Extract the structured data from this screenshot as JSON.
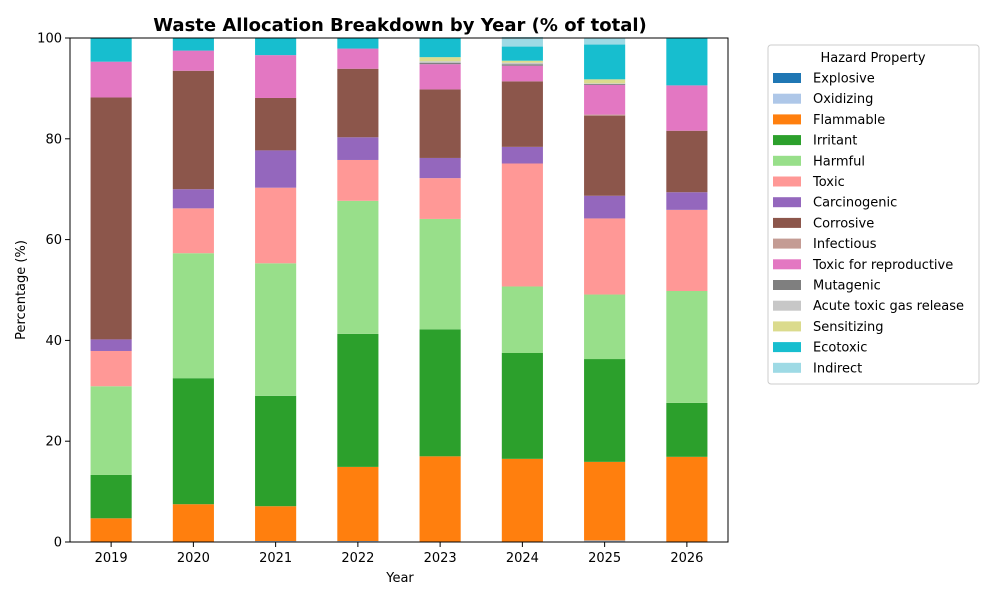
{
  "chart_data": {
    "type": "bar",
    "stacked": true,
    "title": "Waste Allocation Breakdown by Year (% of total)",
    "xlabel": "Year",
    "ylabel": "Percentage (%)",
    "ylim": [
      0,
      100
    ],
    "yticks": [
      0,
      20,
      40,
      60,
      80,
      100
    ],
    "grid": false,
    "legend": {
      "title": "Hazard Property",
      "placement": "outside-right"
    },
    "categories": [
      "2019",
      "2020",
      "2021",
      "2022",
      "2023",
      "2024",
      "2025",
      "2026"
    ],
    "series": [
      {
        "name": "Explosive",
        "color": "#1f77b4",
        "values": [
          0,
          0,
          0,
          0,
          0,
          0,
          0,
          0
        ]
      },
      {
        "name": "Oxidizing",
        "color": "#aec7e8",
        "values": [
          0,
          0,
          0.2,
          0.2,
          0,
          0,
          0.3,
          0
        ]
      },
      {
        "name": "Flammable",
        "color": "#ff7f0e",
        "values": [
          4.7,
          7.5,
          6.9,
          14.7,
          17.0,
          16.5,
          15.6,
          16.9
        ]
      },
      {
        "name": "Irritant",
        "color": "#2ca02c",
        "values": [
          8.6,
          25.0,
          21.9,
          26.4,
          25.2,
          21.0,
          20.4,
          10.7
        ]
      },
      {
        "name": "Harmful",
        "color": "#98df8a",
        "values": [
          17.6,
          24.8,
          26.3,
          26.4,
          21.9,
          13.2,
          12.8,
          22.2
        ]
      },
      {
        "name": "Toxic",
        "color": "#ff9896",
        "values": [
          7.0,
          8.9,
          15.0,
          8.1,
          8.1,
          24.4,
          15.1,
          16.1
        ]
      },
      {
        "name": "Carcinogenic",
        "color": "#9467bd",
        "values": [
          2.3,
          3.8,
          7.4,
          4.5,
          4.0,
          3.3,
          4.5,
          3.5
        ]
      },
      {
        "name": "Corrosive",
        "color": "#8c564b",
        "values": [
          48.0,
          23.5,
          10.4,
          13.6,
          13.6,
          13.0,
          15.9,
          12.2
        ]
      },
      {
        "name": "Infectious",
        "color": "#c49c94",
        "values": [
          0,
          0,
          0,
          0,
          0,
          0,
          0.2,
          0
        ]
      },
      {
        "name": "Toxic for reproductive",
        "color": "#e377c2",
        "values": [
          7.1,
          4.0,
          8.5,
          4.0,
          5.0,
          3.1,
          5.9,
          9.0
        ]
      },
      {
        "name": "Mutagenic",
        "color": "#7f7f7f",
        "values": [
          0,
          0,
          0,
          0,
          0.3,
          0.3,
          0.2,
          0
        ]
      },
      {
        "name": "Acute toxic gas release",
        "color": "#c7c7c7",
        "values": [
          0,
          0,
          0,
          0,
          0.3,
          0.3,
          0.1,
          0
        ]
      },
      {
        "name": "Sensitizing",
        "color": "#dbdb8d",
        "values": [
          0,
          0,
          0,
          0,
          0.8,
          0.4,
          0.8,
          0
        ]
      },
      {
        "name": "Ecotoxic",
        "color": "#17becf",
        "values": [
          4.7,
          2.5,
          3.4,
          2.1,
          3.8,
          2.8,
          6.9,
          9.4
        ]
      },
      {
        "name": "Indirect",
        "color": "#9edae5",
        "values": [
          0,
          0,
          0,
          0,
          0,
          1.9,
          1.3,
          0
        ]
      }
    ]
  }
}
